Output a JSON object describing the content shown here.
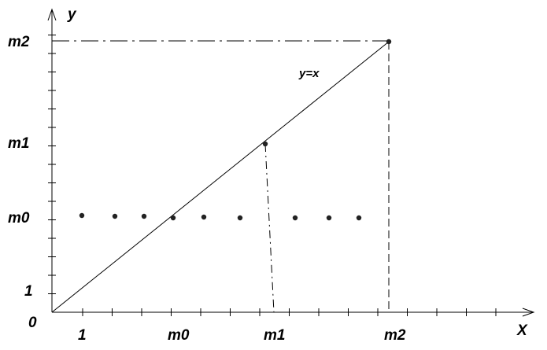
{
  "axes": {
    "x_label": "X",
    "y_label": "y",
    "origin": "0"
  },
  "x_tick_labels": [
    "1",
    "m0",
    "m1",
    "m2"
  ],
  "y_tick_labels": [
    "1",
    "m0",
    "m1",
    "m2"
  ],
  "line_label": "y=x"
}
